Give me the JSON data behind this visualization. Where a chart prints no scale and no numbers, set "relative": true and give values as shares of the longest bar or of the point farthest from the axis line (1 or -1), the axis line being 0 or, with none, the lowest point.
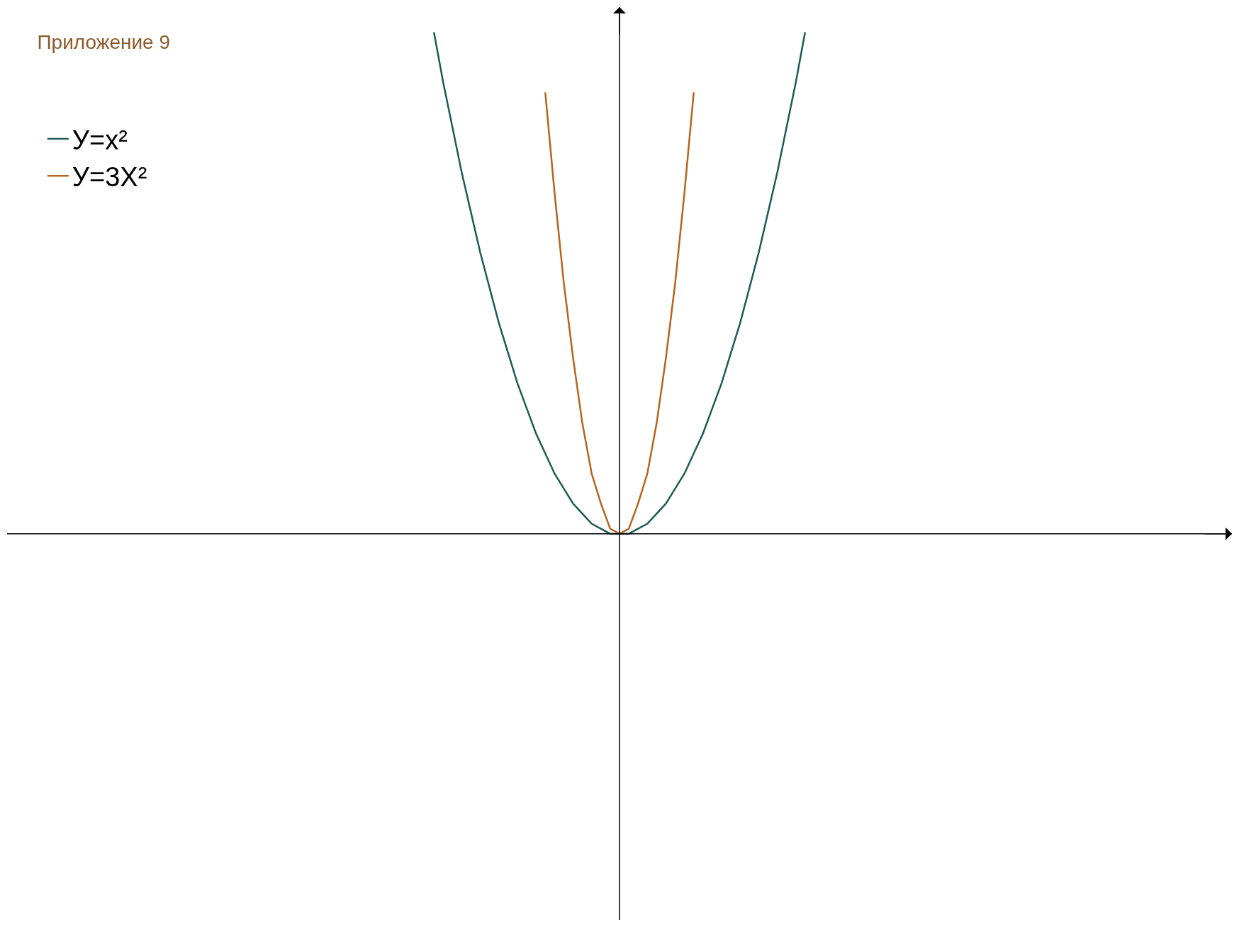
{
  "chart_data": {
    "type": "line",
    "title": "Приложение 9",
    "relative": true,
    "legend": "top left",
    "grid": false,
    "marker": "none",
    "line_style": "solid",
    "categories": [
      null,
      null,
      null,
      null,
      null,
      null,
      null,
      null,
      null,
      null,
      null,
      null,
      null,
      null,
      null,
      null,
      null,
      null,
      null,
      null,
      null,
      null,
      null,
      null,
      null,
      null,
      null,
      null,
      null,
      null,
      null,
      null,
      null,
      null,
      null,
      null,
      null,
      null,
      null,
      null,
      null
    ],
    "series": [
      {
        "name": "У=x²",
        "color": "#1f5b55",
        "values": [
          1,
          0.9,
          0.81,
          0.72,
          0.64,
          0.56,
          0.49,
          0.42,
          0.36,
          0.3,
          0.25,
          0.2,
          0.16,
          0.12,
          0.09,
          0.06,
          0.04,
          0.02,
          0.01,
          0,
          0,
          0,
          0.01,
          0.02,
          0.04,
          0.06,
          0.09,
          0.12,
          0.16,
          0.2,
          0.25,
          0.3,
          0.36,
          0.42,
          0.49,
          0.56,
          0.64,
          0.72,
          0.81,
          0.9,
          1
        ]
      },
      {
        "name": "У=3X²",
        "color": "#b5651d",
        "values": [
          null,
          null,
          null,
          null,
          null,
          null,
          null,
          null,
          null,
          null,
          null,
          null,
          0.88,
          0.68,
          0.5,
          0.35,
          0.22,
          0.12,
          0.06,
          0.01,
          0,
          0.01,
          0.06,
          0.12,
          0.22,
          0.35,
          0.5,
          0.68,
          0.88,
          null,
          null,
          null,
          null,
          null,
          null,
          null,
          null,
          null,
          null,
          null,
          null
        ]
      }
    ]
  }
}
